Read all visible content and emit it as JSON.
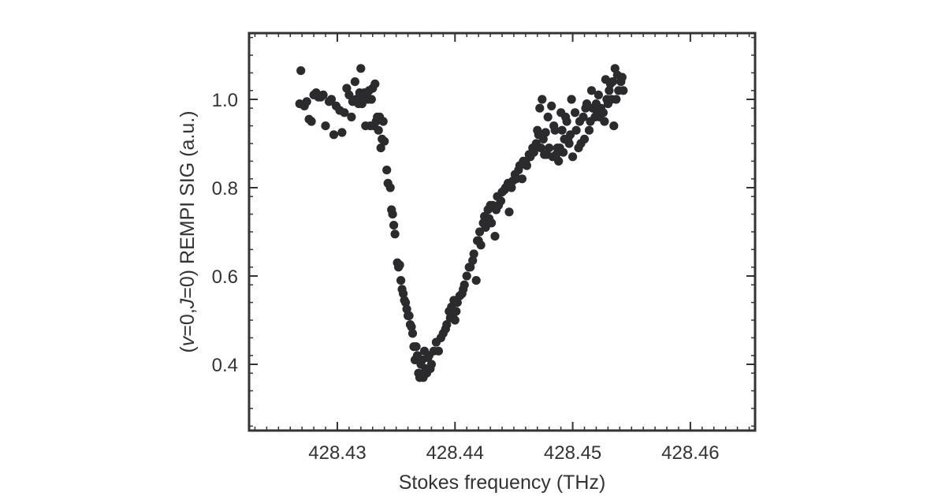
{
  "chart_data": {
    "type": "scatter",
    "xlabel": "Stokes frequency (THz)",
    "ylabel": {
      "open": "(",
      "v": "v",
      "mid1": "=0,",
      "J": "J",
      "mid2": "=0) REMPI SIG (a.u.)"
    },
    "xlim": [
      428.4225,
      428.4655
    ],
    "ylim": [
      0.25,
      1.15
    ],
    "x_ticks": [
      {
        "value": 428.43,
        "label": "428.43"
      },
      {
        "value": 428.44,
        "label": "428.44"
      },
      {
        "value": 428.45,
        "label": "428.45"
      },
      {
        "value": 428.46,
        "label": "428.46"
      }
    ],
    "y_ticks": [
      {
        "value": 0.4,
        "label": "0.4"
      },
      {
        "value": 0.6,
        "label": "0.6"
      },
      {
        "value": 0.8,
        "label": "0.8"
      },
      {
        "value": 1.0,
        "label": "1.0"
      }
    ],
    "marker_color": "#2b2b2e",
    "grid": false,
    "series": [
      {
        "points": [
          [
            428.4269,
            1.065
          ],
          [
            428.4268,
            0.99
          ],
          [
            428.4272,
            0.985
          ],
          [
            428.4274,
            0.995
          ],
          [
            428.4276,
            0.955
          ],
          [
            428.4278,
            0.95
          ],
          [
            428.428,
            1.01
          ],
          [
            428.4282,
            1.015
          ],
          [
            428.4284,
            1.005
          ],
          [
            428.4286,
            1.005
          ],
          [
            428.4288,
            1.01
          ],
          [
            428.429,
            0.94
          ],
          [
            428.4293,
            0.995
          ],
          [
            428.4295,
            1.0
          ],
          [
            428.4297,
            0.92
          ],
          [
            428.4299,
            0.985
          ],
          [
            428.4302,
            0.975
          ],
          [
            428.4304,
            0.925
          ],
          [
            428.4306,
            0.97
          ],
          [
            428.4308,
            1.025
          ],
          [
            428.431,
            1.01
          ],
          [
            428.4312,
            0.96
          ],
          [
            428.4313,
            0.995
          ],
          [
            428.4315,
            1.04
          ],
          [
            428.4316,
            1.0
          ],
          [
            428.4318,
            0.99
          ],
          [
            428.4319,
            1.015
          ],
          [
            428.432,
            1.07
          ],
          [
            428.4321,
            0.99
          ],
          [
            428.4322,
            1.0
          ],
          [
            428.4323,
            1.015
          ],
          [
            428.4324,
            0.94
          ],
          [
            428.4325,
            1.01
          ],
          [
            428.4326,
            1.0
          ],
          [
            428.4327,
            1.02
          ],
          [
            428.4328,
            0.94
          ],
          [
            428.4329,
            1.0
          ],
          [
            428.433,
            1.025
          ],
          [
            428.4331,
            0.94
          ],
          [
            428.4332,
            1.035
          ],
          [
            428.4333,
            0.95
          ],
          [
            428.4334,
            0.96
          ],
          [
            428.4335,
            0.93
          ],
          [
            428.4336,
            0.96
          ],
          [
            428.4337,
            0.89
          ],
          [
            428.4338,
            0.91
          ],
          [
            428.4339,
            0.95
          ],
          [
            428.434,
            0.905
          ],
          [
            428.4342,
            0.84
          ],
          [
            428.4343,
            0.81
          ],
          [
            428.4345,
            0.8
          ],
          [
            428.4346,
            0.75
          ],
          [
            428.4347,
            0.74
          ],
          [
            428.4348,
            0.715
          ],
          [
            428.4349,
            0.695
          ],
          [
            428.4351,
            0.63
          ],
          [
            428.4352,
            0.62
          ],
          [
            428.4353,
            0.625
          ],
          [
            428.4354,
            0.59
          ],
          [
            428.4355,
            0.57
          ],
          [
            428.4356,
            0.56
          ],
          [
            428.4357,
            0.545
          ],
          [
            428.4358,
            0.54
          ],
          [
            428.4359,
            0.525
          ],
          [
            428.436,
            0.51
          ],
          [
            428.4361,
            0.51
          ],
          [
            428.4362,
            0.49
          ],
          [
            428.4363,
            0.485
          ],
          [
            428.4364,
            0.47
          ],
          [
            428.4365,
            0.44
          ],
          [
            428.4366,
            0.41
          ],
          [
            428.4367,
            0.44
          ],
          [
            428.4368,
            0.42
          ],
          [
            428.4369,
            0.38
          ],
          [
            428.437,
            0.37
          ],
          [
            428.4371,
            0.4
          ],
          [
            428.4372,
            0.41
          ],
          [
            428.4373,
            0.37
          ],
          [
            428.4374,
            0.43
          ],
          [
            428.4375,
            0.39
          ],
          [
            428.4376,
            0.38
          ],
          [
            428.4377,
            0.415
          ],
          [
            428.4378,
            0.42
          ],
          [
            428.4379,
            0.39
          ],
          [
            428.438,
            0.4
          ],
          [
            428.4382,
            0.43
          ],
          [
            428.4384,
            0.45
          ],
          [
            428.4386,
            0.43
          ],
          [
            428.4388,
            0.46
          ],
          [
            428.439,
            0.47
          ],
          [
            428.4392,
            0.48
          ],
          [
            428.4393,
            0.49
          ],
          [
            428.4395,
            0.52
          ],
          [
            428.4396,
            0.505
          ],
          [
            428.4397,
            0.53
          ],
          [
            428.4398,
            0.51
          ],
          [
            428.4399,
            0.545
          ],
          [
            428.44,
            0.5
          ],
          [
            428.4401,
            0.52
          ],
          [
            428.4402,
            0.54
          ],
          [
            428.4404,
            0.555
          ],
          [
            428.4406,
            0.56
          ],
          [
            428.4407,
            0.57
          ],
          [
            428.4408,
            0.58
          ],
          [
            428.441,
            0.6
          ],
          [
            428.4412,
            0.62
          ],
          [
            428.4413,
            0.62
          ],
          [
            428.4415,
            0.635
          ],
          [
            428.4416,
            0.65
          ],
          [
            428.4418,
            0.59
          ],
          [
            428.4419,
            0.68
          ],
          [
            428.442,
            0.68
          ],
          [
            428.4421,
            0.7
          ],
          [
            428.4422,
            0.67
          ],
          [
            428.4424,
            0.72
          ],
          [
            428.4425,
            0.735
          ],
          [
            428.4426,
            0.71
          ],
          [
            428.4428,
            0.75
          ],
          [
            428.4429,
            0.73
          ],
          [
            428.443,
            0.76
          ],
          [
            428.4431,
            0.72
          ],
          [
            428.4432,
            0.76
          ],
          [
            428.4434,
            0.69
          ],
          [
            428.4435,
            0.75
          ],
          [
            428.4436,
            0.78
          ],
          [
            428.4437,
            0.76
          ],
          [
            428.4439,
            0.77
          ],
          [
            428.444,
            0.79
          ],
          [
            428.4442,
            0.795
          ],
          [
            428.4443,
            0.8
          ],
          [
            428.4445,
            0.81
          ],
          [
            428.4446,
            0.745
          ],
          [
            428.4448,
            0.8
          ],
          [
            428.4449,
            0.815
          ],
          [
            428.4451,
            0.83
          ],
          [
            428.4452,
            0.82
          ],
          [
            428.4454,
            0.84
          ],
          [
            428.4455,
            0.85
          ],
          [
            428.4457,
            0.82
          ],
          [
            428.4458,
            0.86
          ],
          [
            428.446,
            0.86
          ],
          [
            428.4461,
            0.85
          ],
          [
            428.4463,
            0.875
          ],
          [
            428.4464,
            0.87
          ],
          [
            428.4466,
            0.89
          ],
          [
            428.4467,
            0.88
          ],
          [
            428.4469,
            0.9
          ],
          [
            428.447,
            0.93
          ],
          [
            428.4471,
            0.92
          ],
          [
            428.4472,
            0.98
          ],
          [
            428.4473,
            0.89
          ],
          [
            428.4474,
            1.0
          ],
          [
            428.4475,
            0.91
          ],
          [
            428.4476,
            0.875
          ],
          [
            428.4477,
            0.925
          ],
          [
            428.4478,
            0.875
          ],
          [
            428.4479,
            0.96
          ],
          [
            428.448,
            0.89
          ],
          [
            428.4482,
            0.985
          ],
          [
            428.4483,
            0.87
          ],
          [
            428.4484,
            0.94
          ],
          [
            428.4485,
            0.93
          ],
          [
            428.4486,
            0.875
          ],
          [
            428.4487,
            0.89
          ],
          [
            428.4488,
            0.86
          ],
          [
            428.4489,
            0.89
          ],
          [
            428.449,
            0.97
          ],
          [
            428.4491,
            0.93
          ],
          [
            428.4492,
            0.88
          ],
          [
            428.4493,
            0.91
          ],
          [
            428.4494,
            0.96
          ],
          [
            428.4495,
            0.95
          ],
          [
            428.4496,
            0.91
          ],
          [
            428.4497,
            0.9
          ],
          [
            428.4498,
            0.92
          ],
          [
            428.4499,
            1.0
          ],
          [
            428.45,
            0.87
          ],
          [
            428.4502,
            0.97
          ],
          [
            428.4503,
            0.93
          ],
          [
            428.4505,
            0.89
          ],
          [
            428.4506,
            0.95
          ],
          [
            428.4507,
            0.9
          ],
          [
            428.4509,
            0.96
          ],
          [
            428.451,
            0.91
          ],
          [
            428.4511,
            0.98
          ],
          [
            428.4512,
            0.99
          ],
          [
            428.4514,
            0.93
          ],
          [
            428.4515,
            0.95
          ],
          [
            428.4516,
            1.02
          ],
          [
            428.4517,
            0.98
          ],
          [
            428.4519,
            0.96
          ],
          [
            428.452,
            0.99
          ],
          [
            428.4521,
            0.97
          ],
          [
            428.4522,
            1.01
          ],
          [
            428.4523,
            0.96
          ],
          [
            428.4524,
            0.98
          ],
          [
            428.4526,
            0.97
          ],
          [
            428.4527,
            0.95
          ],
          [
            428.4528,
            1.045
          ],
          [
            428.4529,
            1.0
          ],
          [
            428.453,
            0.99
          ],
          [
            428.4531,
            1.02
          ],
          [
            428.4532,
            1.035
          ],
          [
            428.4533,
            1.0
          ],
          [
            428.4534,
            1.04
          ],
          [
            428.4535,
            0.94
          ],
          [
            428.4536,
            1.07
          ],
          [
            428.4537,
            1.0
          ],
          [
            428.4538,
            1.055
          ],
          [
            428.4539,
            1.02
          ],
          [
            428.4541,
            1.04
          ],
          [
            428.4542,
            1.05
          ],
          [
            428.4543,
            1.02
          ]
        ]
      }
    ]
  }
}
